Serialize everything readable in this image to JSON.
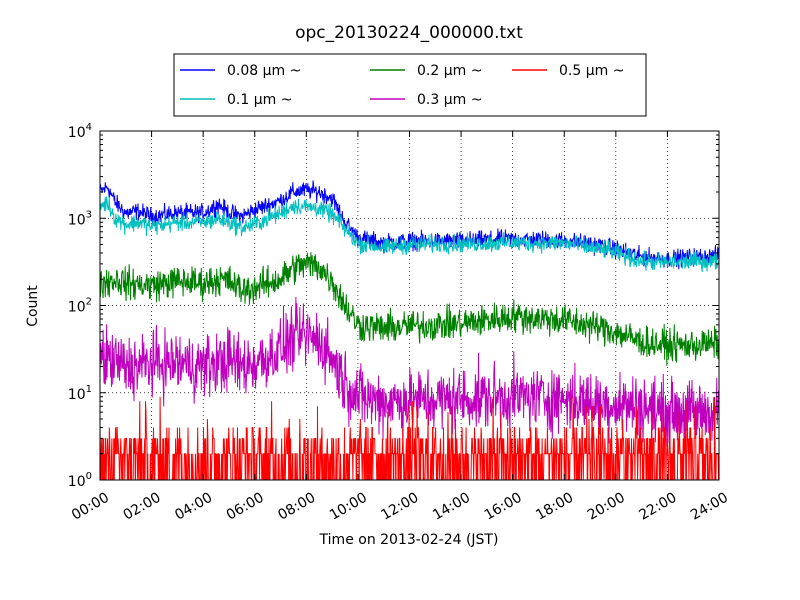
{
  "chart_data": {
    "type": "line",
    "title": "opc_20130224_000000.txt",
    "xlabel": "Time on 2013-02-24 (JST)",
    "ylabel": "Count",
    "y_scale": "log",
    "grid": true,
    "legend_position": "top-center",
    "xlim": [
      "00:00",
      "24:00"
    ],
    "ylim": [
      1,
      10000
    ],
    "x_ticks": [
      "00:00",
      "02:00",
      "04:00",
      "06:00",
      "08:00",
      "10:00",
      "12:00",
      "14:00",
      "16:00",
      "18:00",
      "20:00",
      "22:00",
      "24:00"
    ],
    "y_ticks": [
      {
        "value": 1,
        "base": "10",
        "exp": "0"
      },
      {
        "value": 10,
        "base": "10",
        "exp": "1"
      },
      {
        "value": 100,
        "base": "10",
        "exp": "2"
      },
      {
        "value": 1000,
        "base": "10",
        "exp": "3"
      },
      {
        "value": 10000,
        "base": "10",
        "exp": "4"
      }
    ],
    "x_hours": [
      0,
      0.3,
      0.6,
      1,
      1.5,
      2,
      3,
      4,
      4.6,
      5,
      5.5,
      6,
      7,
      7.5,
      8,
      8.5,
      9,
      9.5,
      10,
      11,
      12,
      14,
      16,
      18,
      19.5,
      20,
      21,
      22,
      23,
      24
    ],
    "series": [
      {
        "name": "0.08 μm ~",
        "legend_label": "0.08 μm ~",
        "color": "#0000ff",
        "noise": 0.05,
        "values": [
          2000,
          2300,
          1500,
          1150,
          1200,
          1050,
          1150,
          1150,
          1450,
          1150,
          1050,
          1250,
          1600,
          2000,
          2100,
          2000,
          1700,
          900,
          600,
          520,
          550,
          550,
          580,
          560,
          480,
          450,
          360,
          340,
          360,
          370
        ]
      },
      {
        "name": "0.1 μm ~",
        "legend_label": "0.1 μm ~",
        "color": "#00bfbf",
        "noise": 0.05,
        "values": [
          1400,
          1500,
          1000,
          850,
          900,
          800,
          900,
          900,
          980,
          900,
          780,
          850,
          1150,
          1400,
          1350,
          1300,
          1100,
          750,
          520,
          460,
          500,
          510,
          520,
          520,
          440,
          400,
          320,
          310,
          320,
          320
        ]
      },
      {
        "name": "0.2 μm ~",
        "legend_label": "0.2 μm ~",
        "color": "#008000",
        "noise": 0.09,
        "values": [
          180,
          190,
          200,
          180,
          175,
          170,
          190,
          180,
          200,
          190,
          150,
          160,
          200,
          270,
          300,
          280,
          190,
          100,
          60,
          55,
          58,
          62,
          75,
          68,
          55,
          50,
          38,
          35,
          35,
          37
        ]
      },
      {
        "name": "0.3 μm ~",
        "legend_label": "0.3 μm ~",
        "color": "#bf00bf",
        "noise": 0.18,
        "values": [
          25,
          24,
          22,
          20,
          20,
          22,
          22,
          20,
          22,
          24,
          20,
          22,
          32,
          42,
          45,
          40,
          25,
          13,
          9,
          8,
          8,
          8.5,
          9,
          8.5,
          7.5,
          7.5,
          7,
          6,
          6,
          6
        ]
      },
      {
        "name": "0.5 μm ~",
        "legend_label": "0.5 μm ~",
        "color": "#ff0000",
        "noise": 0,
        "values": [
          2,
          2,
          2,
          2,
          2,
          2,
          2,
          2,
          2,
          2,
          2,
          2,
          2.5,
          2.5,
          2.5,
          2.5,
          2,
          2,
          2,
          2,
          2,
          2,
          2,
          2,
          2,
          2,
          1.6,
          1.6,
          1.6,
          1.6
        ]
      }
    ]
  }
}
